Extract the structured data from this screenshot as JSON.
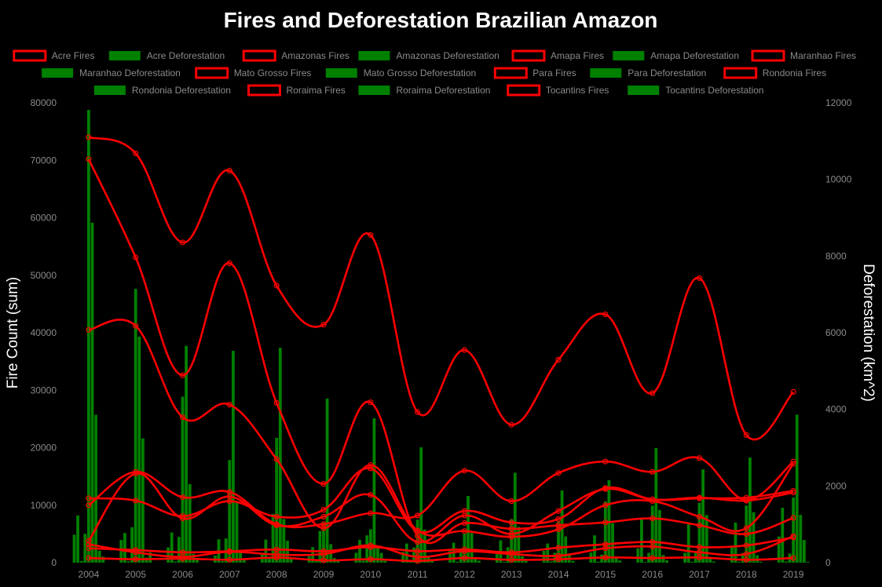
{
  "chart_data": {
    "type": "bar+line",
    "title": "Fires and Deforestation Brazilian Amazon",
    "xlabel": "",
    "ylabel": "Fire Count (sum)",
    "y2label": "Deforestation (km^2)",
    "ylim": [
      0,
      80000
    ],
    "y2lim": [
      0,
      12000
    ],
    "yticks": [
      0,
      10000,
      20000,
      30000,
      40000,
      50000,
      60000,
      70000,
      80000
    ],
    "y2ticks": [
      0,
      2000,
      4000,
      6000,
      8000,
      10000,
      12000
    ],
    "categories": [
      "2004",
      "2005",
      "2006",
      "2007",
      "2008",
      "2009",
      "2010",
      "2011",
      "2012",
      "2013",
      "2014",
      "2015",
      "2016",
      "2017",
      "2018",
      "2019"
    ],
    "legend_position": "top",
    "colors": {
      "fires": "#ff0000",
      "deforestation": "#008000",
      "background": "#000000"
    },
    "legend": [
      "Acre Fires",
      "Acre Deforestation",
      "Amazonas Fires",
      "Amazonas Deforestation",
      "Amapa Fires",
      "Amapa Deforestation",
      "Maranhao Fires",
      "Maranhao Deforestation",
      "Mato Grosso Fires",
      "Mato Grosso Deforestation",
      "Para Fires",
      "Para Deforestation",
      "Rondonia Fires",
      "Rondonia Deforestation",
      "Roraima Fires",
      "Roraima Deforestation",
      "Tocantins Fires",
      "Tocantins Deforestation"
    ],
    "fires_series": [
      {
        "name": "Acre Fires",
        "values": [
          2500,
          2200,
          1800,
          2000,
          2300,
          2000,
          2700,
          2000,
          2300,
          1800,
          2600,
          3200,
          3600,
          2700,
          3000,
          4400
        ]
      },
      {
        "name": "Amazonas Fires",
        "values": [
          3800,
          15500,
          7700,
          11500,
          6500,
          8000,
          11800,
          3600,
          8200,
          5000,
          9000,
          12800,
          11000,
          11300,
          10800,
          12200
        ]
      },
      {
        "name": "Amapa Fires",
        "values": [
          800,
          600,
          700,
          500,
          900,
          400,
          600,
          300,
          800,
          500,
          600,
          900,
          800,
          900,
          500,
          800
        ]
      },
      {
        "name": "Maranhao Fires",
        "values": [
          11200,
          10800,
          8100,
          10700,
          8000,
          9200,
          16400,
          5500,
          9000,
          7000,
          7600,
          13000,
          11000,
          11200,
          11300,
          12500
        ]
      },
      {
        "name": "Mato Grosso Fires",
        "values": [
          70200,
          53100,
          32600,
          52100,
          27800,
          13700,
          27900,
          4700,
          6900,
          5900,
          6500,
          7000,
          7700,
          6500,
          5000,
          7800
        ]
      },
      {
        "name": "Para Fires",
        "values": [
          74000,
          71200,
          55700,
          68200,
          48200,
          41400,
          57000,
          26200,
          37000,
          24000,
          35300,
          43200,
          29500,
          49500,
          22200,
          29700
        ]
      },
      {
        "name": "Rondonia Fires",
        "values": [
          40500,
          41200,
          25300,
          27500,
          18000,
          6000,
          17000,
          5600,
          5500,
          4500,
          5800,
          10000,
          10700,
          8000,
          6000,
          17200
        ]
      },
      {
        "name": "Roraima Fires",
        "values": [
          3200,
          1800,
          1000,
          1900,
          1400,
          1500,
          3000,
          1000,
          2000,
          1500,
          1200,
          2500,
          2800,
          1800,
          1500,
          4600
        ]
      },
      {
        "name": "Tocantins Fires",
        "values": [
          10000,
          15800,
          11400,
          12300,
          6700,
          6700,
          8600,
          8200,
          16000,
          10700,
          15600,
          17600,
          15800,
          18200,
          10900,
          17600
        ]
      }
    ],
    "deforestation_series": [
      {
        "name": "Acre Deforestation",
        "values": [
          728,
          592,
          398,
          184,
          254,
          167,
          259,
          280,
          305,
          221,
          309,
          264,
          372,
          257,
          444,
          682
        ]
      },
      {
        "name": "Amazonas Deforestation",
        "values": [
          1232,
          775,
          788,
          610,
          604,
          405,
          595,
          502,
          523,
          583,
          500,
          712,
          1129,
          1001,
          1045,
          1434
        ]
      },
      {
        "name": "Amapa Deforestation",
        "values": [
          46,
          33,
          30,
          39,
          100,
          70,
          53,
          66,
          27,
          23,
          31,
          25,
          17,
          24,
          24,
          32
        ]
      },
      {
        "name": "Maranhao Deforestation",
        "values": [
          755,
          922,
          674,
          631,
          1271,
          828,
          712,
          396,
          269,
          403,
          257,
          209,
          258,
          265,
          253,
          237
        ]
      },
      {
        "name": "Mato Grosso Deforestation",
        "values": [
          11814,
          7145,
          4333,
          2678,
          3258,
          1049,
          871,
          1120,
          757,
          1139,
          1075,
          1601,
          1489,
          1561,
          1490,
          1702
        ]
      },
      {
        "name": "Para Deforestation",
        "values": [
          8870,
          5899,
          5659,
          5526,
          5607,
          4281,
          3770,
          3008,
          1741,
          2346,
          1887,
          2153,
          2992,
          2433,
          2744,
          3862
        ]
      },
      {
        "name": "Rondonia Deforestation",
        "values": [
          3858,
          3244,
          2049,
          1611,
          1136,
          482,
          435,
          865,
          773,
          932,
          684,
          1030,
          1376,
          1243,
          1316,
          1245
        ]
      },
      {
        "name": "Roraima Deforestation",
        "values": [
          311,
          133,
          231,
          309,
          574,
          121,
          256,
          141,
          124,
          170,
          219,
          156,
          202,
          132,
          195,
          590
        ]
      },
      {
        "name": "Tocantins Deforestation",
        "values": [
          158,
          271,
          124,
          63,
          107,
          61,
          49,
          40,
          52,
          74,
          50,
          57,
          58,
          31,
          25,
          21
        ]
      }
    ]
  }
}
